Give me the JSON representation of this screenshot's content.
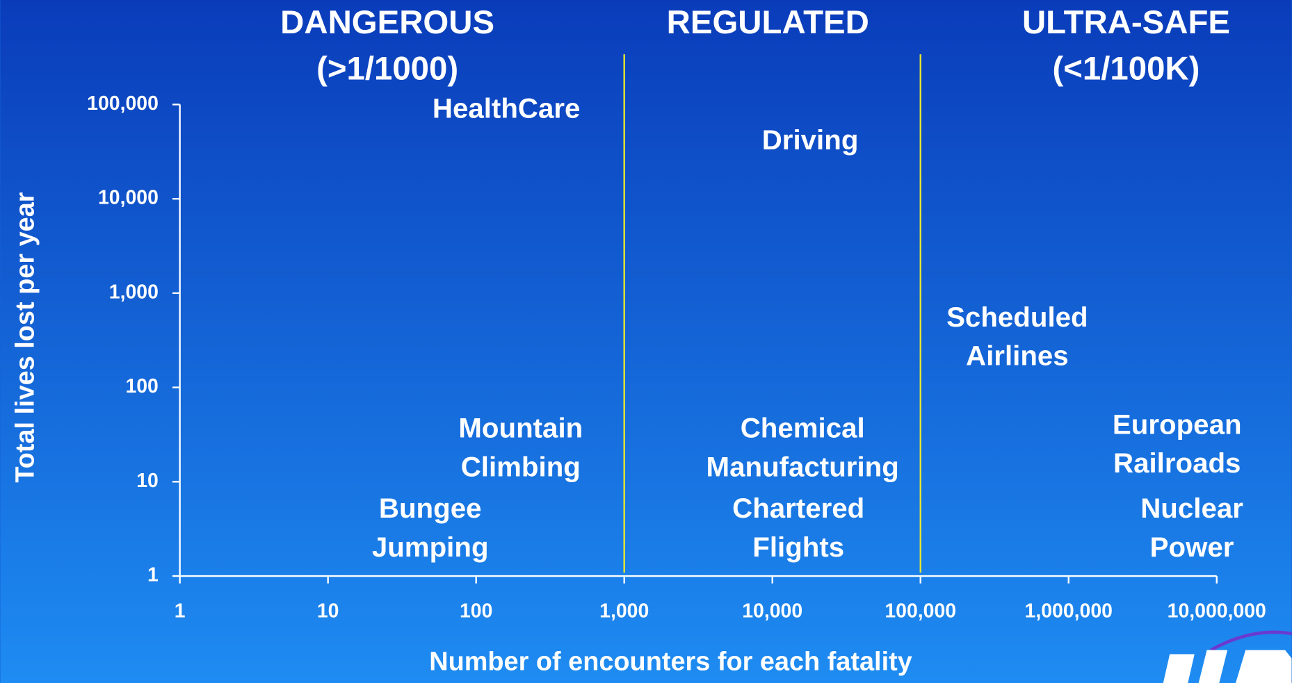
{
  "chart_data": {
    "type": "text-scatter",
    "xlabel": "Number of encounters for each fatality",
    "ylabel": "Total lives lost per year",
    "xscale": "log",
    "yscale": "log",
    "xlim": [
      1,
      10000000
    ],
    "ylim": [
      1,
      100000
    ],
    "xticks": [
      1,
      10,
      100,
      {
        "value": 1000,
        "label": "1,000"
      },
      {
        "value": 10000,
        "label": "10,000"
      },
      {
        "value": 100000,
        "label": "100,000"
      },
      {
        "value": 1000000,
        "label": "1,000,000"
      },
      {
        "value": 10000000,
        "label": "10,000,000"
      }
    ],
    "yticks": [
      1,
      10,
      100,
      {
        "value": 1000,
        "label": "1,000"
      },
      {
        "value": 10000,
        "label": "10,000"
      },
      {
        "value": 100000,
        "label": "100,000"
      }
    ],
    "zones": [
      {
        "lines": [
          "DANGEROUS",
          "(>1/1000)"
        ]
      },
      {
        "lines": [
          "REGULATED"
        ]
      },
      {
        "lines": [
          "ULTRA-SAFE",
          "(<1/100K)"
        ]
      }
    ],
    "boundaries": [
      1000,
      100000
    ],
    "boundary_color": "#e8e830",
    "points": [
      {
        "lines": [
          "HealthCare"
        ],
        "x": 160,
        "y": 87000
      },
      {
        "lines": [
          "Driving"
        ],
        "x": 18000,
        "y": 40000
      },
      {
        "lines": [
          "Scheduled",
          "Airlines"
        ],
        "x": 450000,
        "y": 330
      },
      {
        "lines": [
          "Mountain",
          "Climbing"
        ],
        "x": 200,
        "y": 22
      },
      {
        "lines": [
          "Chemical",
          "Manufacturing"
        ],
        "x": 16000,
        "y": 22
      },
      {
        "lines": [
          "European",
          "Railroads"
        ],
        "x": 5400000,
        "y": 24
      },
      {
        "lines": [
          "Bungee",
          "Jumping"
        ],
        "x": 49,
        "y": 3.1
      },
      {
        "lines": [
          "Chartered",
          "Flights"
        ],
        "x": 15000,
        "y": 3.1
      },
      {
        "lines": [
          "Nuclear",
          "Power"
        ],
        "x": 6800000,
        "y": 3.1
      }
    ]
  }
}
